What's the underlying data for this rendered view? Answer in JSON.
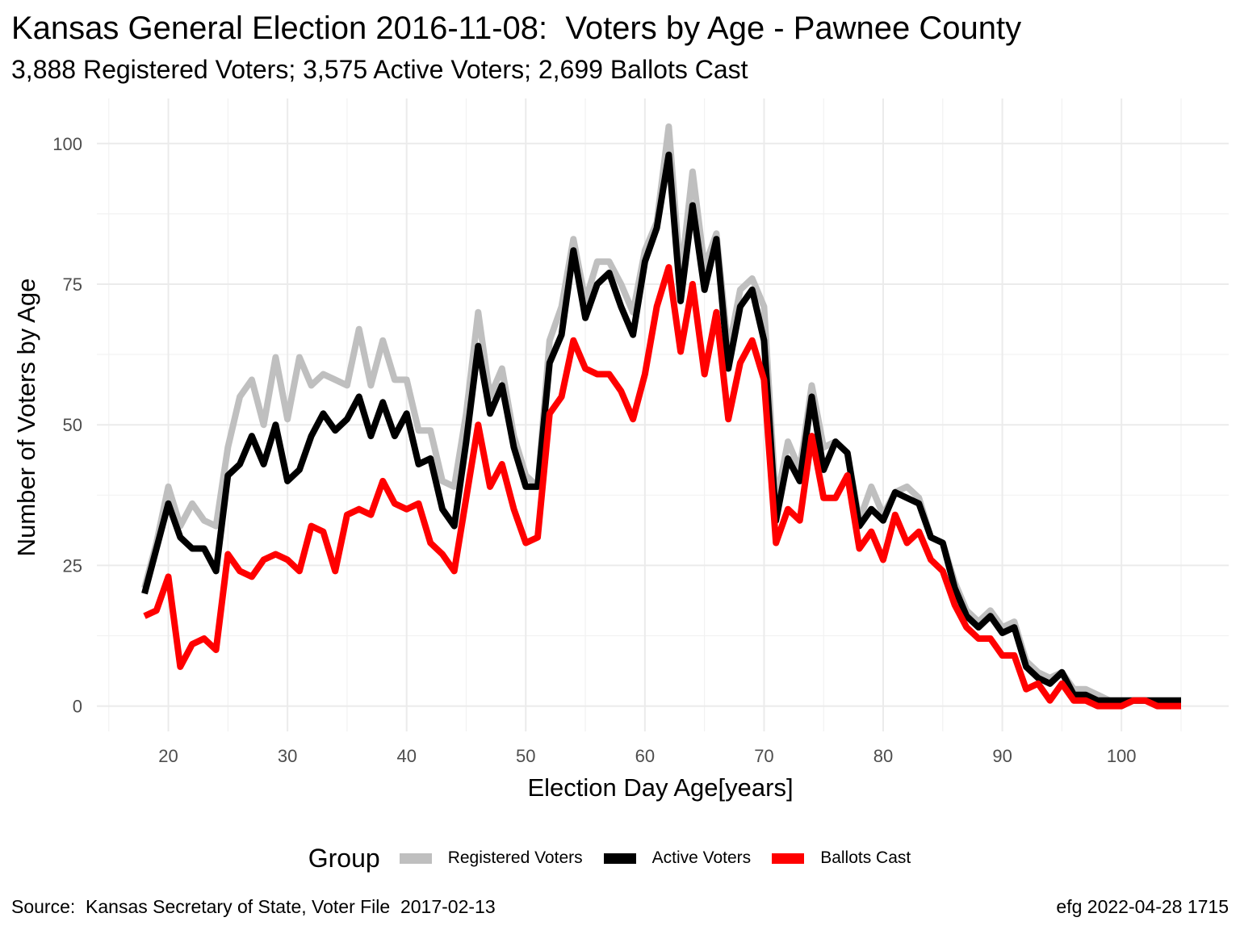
{
  "chart_data": {
    "type": "line",
    "title": "Kansas General Election 2016-11-08:  Voters by Age - Pawnee County",
    "subtitle": "3,888 Registered Voters; 3,575 Active Voters; 2,699 Ballots Cast",
    "xlabel": "Election Day Age[years]",
    "ylabel": "Number of Voters by Age",
    "xlim": [
      14,
      109
    ],
    "ylim": [
      -4.5,
      108
    ],
    "xticks": [
      20,
      30,
      40,
      50,
      60,
      70,
      80,
      90,
      100
    ],
    "yticks": [
      0,
      25,
      50,
      75,
      100
    ],
    "grid": true,
    "legend_title": "Group",
    "legend_position": "bottom",
    "caption_left": "Source:  Kansas Secretary of State, Voter File  2017-02-13",
    "caption_right": "efg 2022-04-28 1715",
    "x": [
      18,
      19,
      20,
      21,
      22,
      23,
      24,
      25,
      26,
      27,
      28,
      29,
      30,
      31,
      32,
      33,
      34,
      35,
      36,
      37,
      38,
      39,
      40,
      41,
      42,
      43,
      44,
      45,
      46,
      47,
      48,
      49,
      50,
      51,
      52,
      53,
      54,
      55,
      56,
      57,
      58,
      59,
      60,
      61,
      62,
      63,
      64,
      65,
      66,
      67,
      68,
      69,
      70,
      71,
      72,
      73,
      74,
      75,
      76,
      77,
      78,
      79,
      80,
      81,
      82,
      83,
      84,
      85,
      86,
      87,
      88,
      89,
      90,
      91,
      92,
      93,
      94,
      95,
      96,
      97,
      98,
      99,
      100,
      101,
      102,
      103,
      104,
      105
    ],
    "series": [
      {
        "name": "Registered Voters",
        "color": "#bfbfbf",
        "values": [
          21,
          29,
          39,
          32,
          36,
          33,
          32,
          46,
          55,
          58,
          50,
          62,
          51,
          62,
          57,
          59,
          58,
          57,
          67,
          57,
          65,
          58,
          58,
          49,
          49,
          40,
          39,
          52,
          70,
          55,
          60,
          48,
          41,
          39,
          65,
          71,
          83,
          72,
          79,
          79,
          75,
          70,
          81,
          86,
          103,
          76,
          95,
          78,
          84,
          63,
          74,
          76,
          71,
          36,
          47,
          42,
          57,
          46,
          47,
          45,
          33,
          39,
          34,
          38,
          39,
          37,
          30,
          29,
          22,
          17,
          15,
          17,
          14,
          15,
          8,
          6,
          5,
          6,
          3,
          3,
          2,
          1,
          1,
          1,
          1,
          1,
          1,
          1
        ]
      },
      {
        "name": "Active Voters",
        "color": "#000000",
        "values": [
          20,
          28,
          36,
          30,
          28,
          28,
          24,
          41,
          43,
          48,
          43,
          50,
          40,
          42,
          48,
          52,
          49,
          51,
          55,
          48,
          54,
          48,
          52,
          43,
          44,
          35,
          32,
          47,
          64,
          52,
          57,
          46,
          39,
          39,
          61,
          66,
          81,
          69,
          75,
          77,
          71,
          66,
          79,
          85,
          98,
          72,
          89,
          74,
          83,
          60,
          71,
          74,
          65,
          33,
          44,
          40,
          55,
          42,
          47,
          45,
          32,
          35,
          33,
          38,
          37,
          36,
          30,
          29,
          21,
          16,
          14,
          16,
          13,
          14,
          7,
          5,
          4,
          6,
          2,
          2,
          1,
          1,
          1,
          1,
          1,
          1,
          1,
          1
        ]
      },
      {
        "name": "Ballots Cast",
        "color": "#ff0000",
        "values": [
          16,
          17,
          23,
          7,
          11,
          12,
          10,
          27,
          24,
          23,
          26,
          27,
          26,
          24,
          32,
          31,
          24,
          34,
          35,
          34,
          40,
          36,
          35,
          36,
          29,
          27,
          24,
          37,
          50,
          39,
          43,
          35,
          29,
          30,
          52,
          55,
          65,
          60,
          59,
          59,
          56,
          51,
          59,
          71,
          78,
          63,
          75,
          59,
          70,
          51,
          61,
          65,
          58,
          29,
          35,
          33,
          48,
          37,
          37,
          41,
          28,
          31,
          26,
          34,
          29,
          31,
          26,
          24,
          18,
          14,
          12,
          12,
          9,
          9,
          3,
          4,
          1,
          4,
          1,
          1,
          0,
          0,
          0,
          1,
          1,
          0,
          0,
          0
        ]
      }
    ]
  }
}
